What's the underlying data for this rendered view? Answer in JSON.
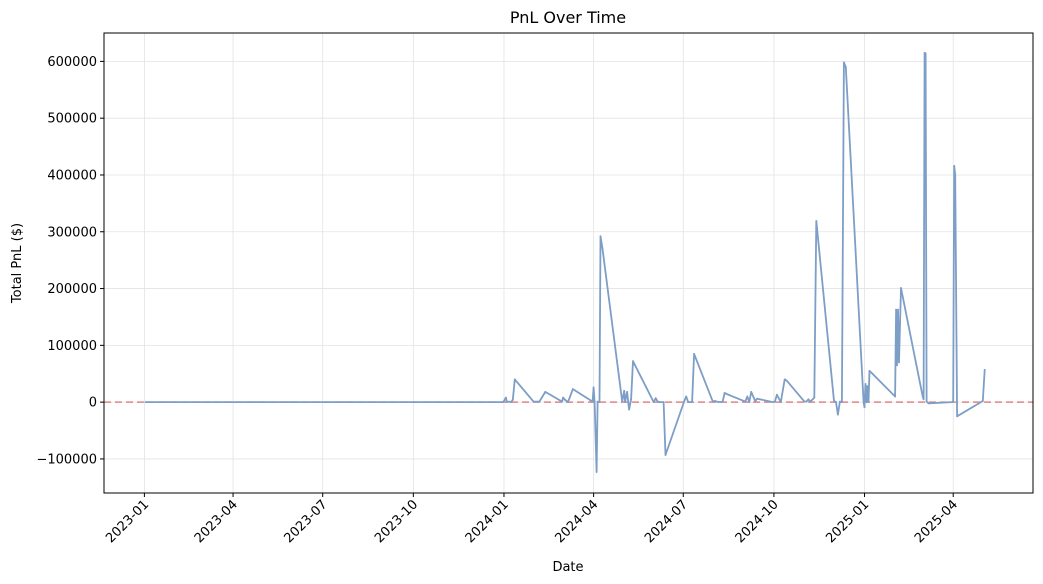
{
  "chart_data": {
    "type": "line",
    "title": "PnL Over Time",
    "xlabel": "Date",
    "ylabel": "Total PnL ($)",
    "x_ticks": [
      "2023-01",
      "2023-04",
      "2023-07",
      "2023-10",
      "2024-01",
      "2024-04",
      "2024-07",
      "2024-10",
      "2025-01",
      "2025-04"
    ],
    "y_ticks": [
      -100000,
      0,
      100000,
      200000,
      300000,
      400000,
      500000,
      600000
    ],
    "y_tick_labels": [
      "−100000",
      "0",
      "100000",
      "200000",
      "300000",
      "400000",
      "500000",
      "600000"
    ],
    "xlim": [
      "2022-11-21",
      "2025-06-21"
    ],
    "ylim": [
      -160000,
      650000
    ],
    "grid": true,
    "line_color": "#7d9ec6",
    "zero_line_color": "#e08585",
    "series": [
      {
        "x": [
          "2023-01-02",
          "2023-06-01",
          "2023-12-31",
          "2024-01-01",
          "2024-01-03",
          "2024-01-04",
          "2024-01-06",
          "2024-01-08",
          "2024-01-10",
          "2024-01-12",
          "2024-01-31",
          "2024-02-06",
          "2024-02-12",
          "2024-02-29",
          "2024-03-01",
          "2024-03-03",
          "2024-03-06",
          "2024-03-11",
          "2024-03-31",
          "2024-04-01",
          "2024-04-02",
          "2024-04-04",
          "2024-04-05",
          "2024-04-06",
          "2024-04-07",
          "2024-04-08",
          "2024-04-10",
          "2024-04-30",
          "2024-05-02",
          "2024-05-03",
          "2024-05-05",
          "2024-05-07",
          "2024-05-09",
          "2024-05-11",
          "2024-06-01",
          "2024-06-03",
          "2024-06-05",
          "2024-06-07",
          "2024-06-11",
          "2024-06-13",
          "2024-07-02",
          "2024-07-04",
          "2024-07-06",
          "2024-07-10",
          "2024-07-12",
          "2024-07-31",
          "2024-08-02",
          "2024-08-06",
          "2024-08-10",
          "2024-08-12",
          "2024-08-16",
          "2024-09-02",
          "2024-09-04",
          "2024-09-06",
          "2024-09-08",
          "2024-09-12",
          "2024-09-14",
          "2024-09-30",
          "2024-10-02",
          "2024-10-04",
          "2024-10-08",
          "2024-10-12",
          "2024-10-14",
          "2024-11-01",
          "2024-11-03",
          "2024-11-05",
          "2024-11-07",
          "2024-11-11",
          "2024-11-13",
          "2024-12-01",
          "2024-12-03",
          "2024-12-05",
          "2024-12-07",
          "2024-12-09",
          "2024-12-11",
          "2024-12-13",
          "2024-12-31",
          "2025-01-01",
          "2025-01-02",
          "2025-01-03",
          "2025-01-04",
          "2025-01-05",
          "2025-01-06",
          "2025-01-09",
          "2025-02-01",
          "2025-02-02",
          "2025-02-03",
          "2025-02-04",
          "2025-02-05",
          "2025-02-07",
          "2025-03-01",
          "2025-03-02",
          "2025-03-03",
          "2025-03-04",
          "2025-03-05",
          "2025-03-07",
          "2025-03-31",
          "2025-04-01",
          "2025-04-02",
          "2025-04-03",
          "2025-04-05",
          "2025-05-01",
          "2025-05-03"
        ],
        "values": [
          0,
          0,
          0,
          2000,
          8000,
          0,
          1000,
          0,
          4000,
          40000,
          1000,
          1000,
          18000,
          1000,
          8000,
          4000,
          0,
          23000,
          1000,
          26000,
          0,
          -123000,
          1000,
          0,
          1000,
          292000,
          270000,
          1000,
          20000,
          0,
          18000,
          -13000,
          5000,
          72000,
          0,
          7000,
          1000,
          0,
          0,
          -93000,
          2000,
          10000,
          0,
          0,
          85000,
          1000,
          2000,
          0,
          1000,
          16000,
          13000,
          1000,
          10000,
          0,
          18000,
          2000,
          6000,
          0,
          1000,
          13000,
          0,
          40000,
          38000,
          1000,
          1000,
          5000,
          1000,
          8000,
          319000,
          2000,
          0,
          -22000,
          1000,
          0,
          598000,
          590000,
          0,
          -9000,
          32000,
          0,
          28000,
          1000,
          55000,
          50000,
          10000,
          163000,
          65000,
          163000,
          70000,
          201000,
          10000,
          5000,
          615000,
          614000,
          1000,
          -2000,
          0,
          2000,
          416000,
          400000,
          -25000,
          2000,
          57000
        ]
      }
    ]
  }
}
